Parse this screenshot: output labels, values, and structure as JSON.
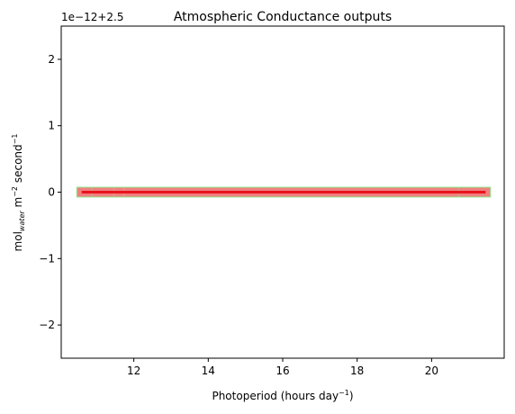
{
  "chart_data": {
    "type": "scatter",
    "title": "Atmospheric Conductance outputs",
    "offset_label": "1e−12+2.5",
    "xlabel": {
      "main": "Photoperiod (hours day",
      "sup": "−1",
      "close": ")"
    },
    "ylabel": {
      "p1": "mol",
      "sub": "water",
      "p2": " m",
      "sup1": "−2",
      "p3": " second",
      "sup2": "−1"
    },
    "xlim": [
      10.05,
      21.95
    ],
    "ylim": [
      -2.5,
      2.5
    ],
    "x_ticks": [
      12,
      14,
      16,
      18,
      20
    ],
    "x_tick_labels": [
      "12",
      "14",
      "16",
      "18",
      "20"
    ],
    "y_ticks": [
      -2,
      -1,
      0,
      1,
      2
    ],
    "y_tick_labels": [
      "−2",
      "−1",
      "0",
      "1",
      "2"
    ],
    "grid": false,
    "series": [
      {
        "style": "squares",
        "color": "#90ee90",
        "x": [
          10.6,
          10.75,
          11.0,
          11.2,
          11.35,
          11.6,
          11.85,
          12.05,
          12.2,
          12.35,
          12.5,
          12.7,
          12.85,
          13.0,
          13.15,
          13.3,
          13.45,
          13.6,
          13.75,
          13.9,
          14.05,
          14.2,
          14.35,
          14.5,
          14.65,
          14.8,
          14.95,
          15.1,
          15.25,
          15.4,
          15.55,
          15.7,
          15.85,
          16.0,
          16.15,
          16.3,
          16.45,
          16.6,
          16.75,
          16.9,
          17.05,
          17.2,
          17.35,
          17.5,
          17.65,
          17.8,
          17.95,
          18.1,
          18.25,
          18.4,
          18.55,
          18.7,
          18.85,
          19.0,
          19.15,
          19.3,
          19.45,
          19.6,
          19.75,
          19.9,
          20.05,
          20.2,
          20.4,
          20.6,
          20.85,
          21.05,
          21.25,
          21.45
        ],
        "y": 0
      },
      {
        "style": "squares",
        "color": "#f08080",
        "x": [
          10.6,
          10.75,
          11.0,
          11.2,
          11.35,
          11.6,
          11.85,
          12.05,
          12.2,
          12.35,
          12.5,
          12.7,
          12.85,
          13.0,
          13.15,
          13.3,
          13.45,
          13.6,
          13.75,
          13.9,
          14.05,
          14.2,
          14.35,
          14.5,
          14.65,
          14.8,
          14.95,
          15.1,
          15.25,
          15.4,
          15.55,
          15.7,
          15.85,
          16.0,
          16.15,
          16.3,
          16.45,
          16.6,
          16.75,
          16.9,
          17.05,
          17.2,
          17.35,
          17.5,
          17.65,
          17.8,
          17.95,
          18.1,
          18.25,
          18.4,
          18.55,
          18.7,
          18.85,
          19.0,
          19.15,
          19.3,
          19.45,
          19.6,
          19.75,
          19.9,
          20.05,
          20.2,
          20.4,
          20.6,
          20.85,
          21.05,
          21.25,
          21.45
        ],
        "y": 0
      },
      {
        "style": "line",
        "color": "#e8141c",
        "x": [
          10.6,
          21.45
        ],
        "y": [
          0,
          0
        ]
      }
    ]
  }
}
